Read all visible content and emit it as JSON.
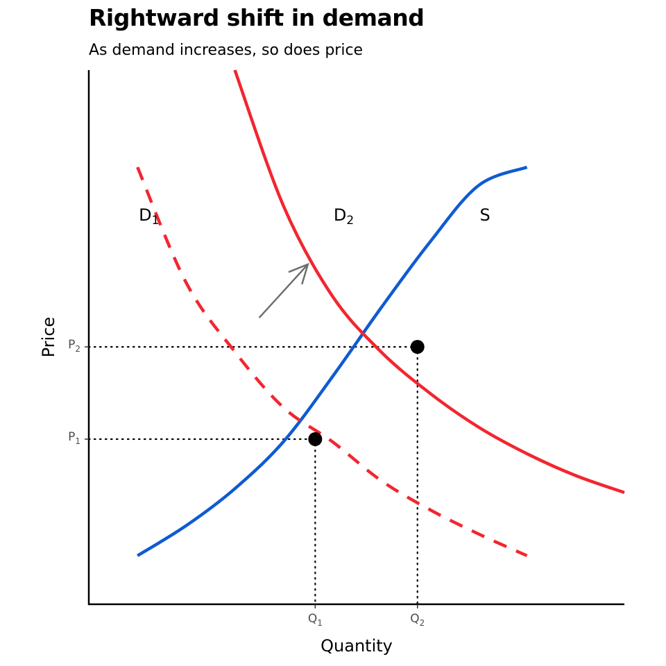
{
  "title": "Rightward shift in demand",
  "subtitle": "As demand increases, so does price",
  "chart_data": {
    "type": "line",
    "title": "Rightward shift in demand",
    "subtitle": "As demand increases, so does price",
    "xlabel": "Quantity",
    "ylabel": "Price",
    "xlim": [
      0,
      11
    ],
    "ylim": [
      0,
      11
    ],
    "grid": false,
    "numeric_tick_labels": false,
    "series": [
      {
        "name": "S",
        "label_base": "S",
        "label_sub": "",
        "color": "#0f5bd1",
        "style": "solid",
        "x": [
          1,
          2,
          3,
          4,
          5,
          6,
          7,
          8,
          9
        ],
        "y": [
          1,
          1.62,
          2.38,
          3.35,
          4.68,
          6.1,
          7.45,
          8.62,
          9
        ]
      },
      {
        "name": "D1",
        "label_base": "D",
        "label_sub": "1",
        "color": "#f2262f",
        "style": "dashed",
        "x": [
          1,
          2,
          3,
          4,
          5,
          6,
          7,
          8,
          9
        ],
        "y": [
          9,
          6.62,
          5.2,
          4.05,
          3.35,
          2.55,
          1.95,
          1.45,
          1
        ]
      },
      {
        "name": "D2",
        "label_base": "D",
        "label_sub": "2",
        "color": "#f2262f",
        "style": "solid",
        "x": [
          3,
          4,
          5,
          6,
          7,
          8,
          9,
          10,
          11
        ],
        "y": [
          11,
          8.2,
          6.35,
          5.2,
          4.35,
          3.65,
          3.1,
          2.65,
          2.3
        ]
      }
    ],
    "curve_labels": [
      {
        "base": "D",
        "sub": "1",
        "x": 1,
        "y": 7.9
      },
      {
        "base": "D",
        "sub": "2",
        "x": 5,
        "y": 7.9
      },
      {
        "base": "S",
        "sub": "",
        "x": 8,
        "y": 7.9
      }
    ],
    "equilibria": [
      {
        "x": 4.65,
        "y": 3.4,
        "q_label": "Q",
        "q_sub": "1",
        "p_label": "P",
        "p_sub": "1"
      },
      {
        "x": 6.75,
        "y": 5.3,
        "q_label": "Q",
        "q_sub": "2",
        "p_label": "P",
        "p_sub": "2"
      }
    ],
    "arrow": {
      "from": [
        3.5,
        5.9
      ],
      "to": [
        4.5,
        7.0
      ],
      "color": "#6e6e6e"
    }
  }
}
